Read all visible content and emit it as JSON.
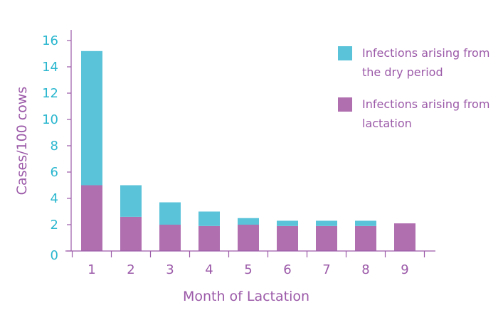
{
  "chart_data": {
    "type": "bar",
    "stacked": true,
    "categories": [
      "1",
      "2",
      "3",
      "4",
      "5",
      "6",
      "7",
      "8",
      "9"
    ],
    "series": [
      {
        "name": "Infections arising from lactation",
        "values": [
          5.0,
          2.6,
          2.0,
          1.9,
          2.0,
          1.9,
          1.9,
          1.9,
          2.1
        ],
        "color": "#b070b0"
      },
      {
        "name": "Infections arising from the dry period",
        "values": [
          10.2,
          2.4,
          1.7,
          1.1,
          0.5,
          0.4,
          0.4,
          0.4,
          0.0
        ],
        "color": "#5bc3d9"
      }
    ],
    "legend": {
      "placement": "top-right",
      "entries": [
        {
          "line1": "Infections arising from",
          "line2": "the dry period",
          "color": "#5bc3d9"
        },
        {
          "line1": "Infections arising from",
          "line2": "lactation",
          "color": "#b070b0"
        }
      ]
    },
    "xlabel": "Month of Lactation",
    "ylabel": "Cases/100 cows",
    "ylim": [
      0,
      16
    ],
    "yticks": [
      0,
      2,
      4,
      6,
      8,
      10,
      12,
      14,
      16
    ],
    "grid": false,
    "axis_color": "#9b59a8"
  }
}
